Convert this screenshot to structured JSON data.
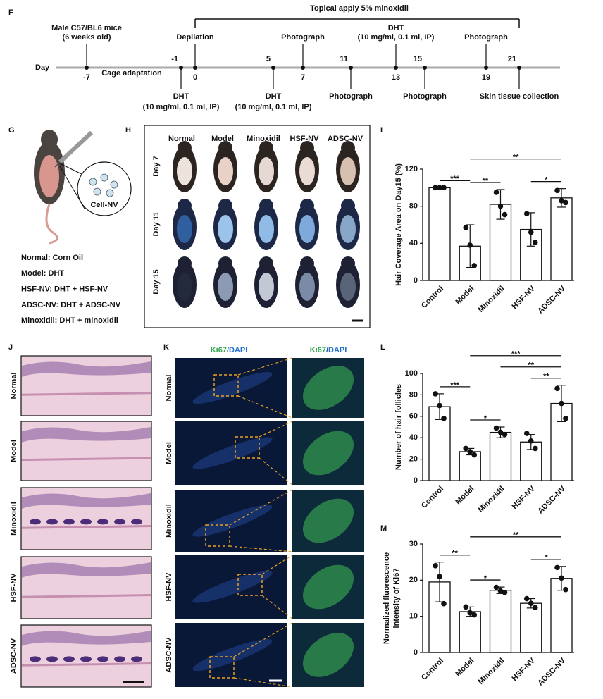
{
  "figure": {
    "F": {
      "label": "F",
      "bracket": "Topical apply 5% minoxidil",
      "axis_label": "Day",
      "cage": "Cage adaptation",
      "events": [
        {
          "day": "-7",
          "above": [
            "Male C57/BL6 mice",
            "(6 weeks old)"
          ],
          "below": []
        },
        {
          "day": "-1",
          "above": [],
          "below": [
            "DHT",
            "(10 mg/ml, 0.1 ml, IP)"
          ]
        },
        {
          "day": "0",
          "above": [
            "Depilation"
          ],
          "below": []
        },
        {
          "day": "5",
          "above": [],
          "below": [
            "DHT",
            "(10 mg/ml, 0.1 ml, IP)"
          ]
        },
        {
          "day": "7",
          "above": [
            "Photograph"
          ],
          "below": []
        },
        {
          "day": "11",
          "above": [],
          "below": [
            "Photograph"
          ]
        },
        {
          "day": "13",
          "above": [
            "DHT",
            "(10 mg/ml, 0.1 ml, IP)"
          ],
          "below": []
        },
        {
          "day": "15",
          "above": [],
          "below": [
            "Photograph"
          ]
        },
        {
          "day": "19",
          "above": [
            "Photograph"
          ],
          "below": []
        },
        {
          "day": "21",
          "above": [],
          "below": [
            "Skin tissue collection"
          ]
        }
      ]
    },
    "G": {
      "label": "G",
      "cell": "Cell-NV",
      "legend": [
        "Normal: Corn Oil",
        "Model: DHT",
        "HSF-NV: DHT + HSF-NV",
        "ADSC-NV: DHT + ADSC-NV",
        "Minoxidil: DHT + minoxidil"
      ]
    },
    "H": {
      "label": "H",
      "columns": [
        "Normal",
        "Model",
        "Minoxidil",
        "HSF-NV",
        "ADSC-NV"
      ],
      "rows": [
        "Day 7",
        "Day 11",
        "Day 15"
      ]
    },
    "J": {
      "label": "J",
      "rows": [
        "Normal",
        "Model",
        "Minoxidil",
        "HSF-NV",
        "ADSC-NV"
      ]
    },
    "K": {
      "label": "K",
      "stain": [
        "Ki67",
        "/",
        "DAPI"
      ],
      "rows": [
        "Normal",
        "Model",
        "Minoxidil",
        "HSF-NV",
        "ADSC-NV"
      ]
    }
  },
  "chart_data": [
    {
      "panel": "I",
      "type": "bar",
      "y_label": [
        "Hair Coverage Area on Day15 (%)"
      ],
      "categories": [
        "Control",
        "Model",
        "Minoxidil",
        "HSF-NV",
        "ADSC-NV"
      ],
      "values": [
        100,
        37,
        82,
        55,
        89
      ],
      "errors": [
        0,
        23,
        16,
        18,
        10
      ],
      "points": [
        [
          100,
          100,
          100
        ],
        [
          57,
          38,
          16
        ],
        [
          95,
          80,
          71
        ],
        [
          72,
          52,
          41
        ],
        [
          97,
          86,
          84
        ]
      ],
      "ylim": [
        0,
        120
      ],
      "yticks": [
        0,
        40,
        80,
        120
      ],
      "significance": [
        {
          "label": "***",
          "between": [
            "Control",
            "Model"
          ]
        },
        {
          "label": "**",
          "between": [
            "Model",
            "Minoxidil"
          ]
        },
        {
          "label": "*",
          "between": [
            "HSF-NV",
            "ADSC-NV"
          ]
        },
        {
          "label": "**",
          "between": [
            "Model",
            "ADSC-NV"
          ]
        }
      ]
    },
    {
      "panel": "L",
      "type": "bar",
      "y_label": [
        "Number of hair follicles"
      ],
      "categories": [
        "Control",
        "Model",
        "Minoxidil",
        "HSF-NV",
        "ADSC-NV"
      ],
      "values": [
        69,
        27,
        45,
        36,
        72
      ],
      "errors": [
        12,
        3,
        5,
        7,
        17
      ],
      "points": [
        [
          81,
          70,
          58
        ],
        [
          30,
          27,
          24
        ],
        [
          49,
          45,
          43
        ],
        [
          44,
          37,
          30
        ],
        [
          86,
          72,
          58
        ]
      ],
      "ylim": [
        0,
        100
      ],
      "yticks": [
        0,
        20,
        40,
        60,
        80,
        100
      ],
      "significance": [
        {
          "label": "***",
          "between": [
            "Control",
            "Model"
          ]
        },
        {
          "label": "*",
          "between": [
            "Model",
            "Minoxidil"
          ]
        },
        {
          "label": "**",
          "between": [
            "HSF-NV",
            "ADSC-NV"
          ]
        },
        {
          "label": "**",
          "between": [
            "Minoxidil",
            "ADSC-NV"
          ]
        },
        {
          "label": "***",
          "between": [
            "Model",
            "ADSC-NV"
          ]
        }
      ]
    },
    {
      "panel": "M",
      "type": "bar",
      "y_label": [
        "Normalized fluorescence",
        "intensity of Ki67"
      ],
      "categories": [
        "Control",
        "Model",
        "Minoxidil",
        "HSF-NV",
        "ADSC-NV"
      ],
      "values": [
        19.5,
        11.3,
        17.2,
        13.6,
        20.5
      ],
      "errors": [
        5.5,
        1.3,
        0.9,
        1.3,
        3.3
      ],
      "points": [
        [
          24,
          21,
          13.5
        ],
        [
          12.6,
          11,
          10.4
        ],
        [
          18,
          17,
          16.6
        ],
        [
          14.9,
          13.6,
          12.4
        ],
        [
          23.5,
          20.6,
          17.4
        ]
      ],
      "ylim": [
        0,
        30
      ],
      "yticks": [
        0,
        10,
        20,
        30
      ],
      "significance": [
        {
          "label": "**",
          "between": [
            "Control",
            "Model"
          ]
        },
        {
          "label": "*",
          "between": [
            "Model",
            "Minoxidil"
          ]
        },
        {
          "label": "*",
          "between": [
            "HSF-NV",
            "ADSC-NV"
          ]
        },
        {
          "label": "**",
          "between": [
            "Model",
            "ADSC-NV"
          ]
        }
      ]
    }
  ]
}
